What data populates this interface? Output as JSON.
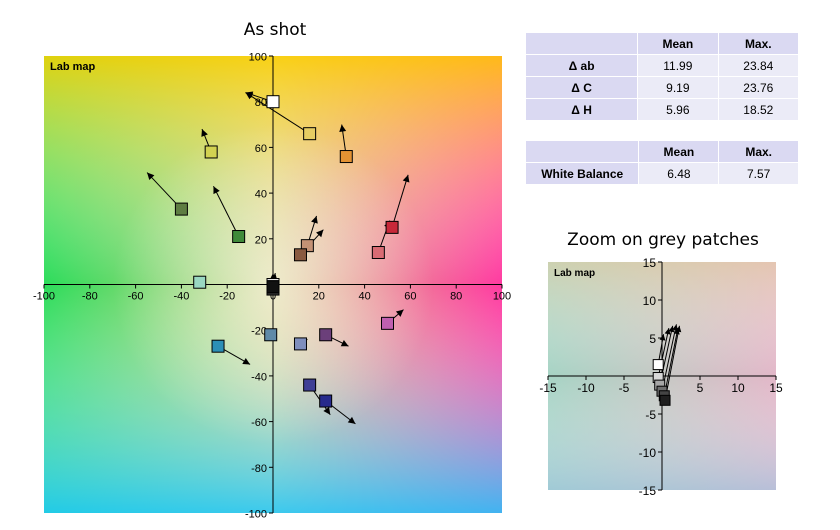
{
  "titles": {
    "main": "As shot",
    "zoom": "Zoom on grey patches"
  },
  "tables": {
    "delta": {
      "headers": [
        "",
        "Mean",
        "Max."
      ],
      "rows": [
        {
          "label": "Δ ab",
          "mean": "11.99",
          "max": "23.84"
        },
        {
          "label": "Δ C",
          "mean": "9.19",
          "max": "23.76"
        },
        {
          "label": "Δ H",
          "mean": "5.96",
          "max": "18.52"
        }
      ]
    },
    "white_balance": {
      "headers": [
        "",
        "Mean",
        "Max."
      ],
      "rows": [
        {
          "label": "White Balance",
          "mean": "6.48",
          "max": "7.57"
        }
      ]
    }
  },
  "chart_data": [
    {
      "type": "scatter",
      "plot_label": "Lab map",
      "title": "As shot",
      "xlim": [
        -100,
        100
      ],
      "ylim": [
        -100,
        100
      ],
      "x_ticks": [
        -100,
        -80,
        -60,
        -40,
        -20,
        0,
        20,
        40,
        60,
        80,
        100
      ],
      "y_ticks": [
        -100,
        -80,
        -60,
        -40,
        -20,
        0,
        20,
        40,
        60,
        80,
        100
      ],
      "grid": false,
      "axes_through_origin": true,
      "marker": "square",
      "patches": [
        {
          "a": 0,
          "b": 80,
          "ta": -12,
          "tb": 84,
          "color": "#ffffff"
        },
        {
          "a": 16,
          "b": 66,
          "ta": -12,
          "tb": 84,
          "color": "#e6cd63"
        },
        {
          "a": -27,
          "b": 58,
          "ta": -31,
          "tb": 68,
          "color": "#d2d251"
        },
        {
          "a": 32,
          "b": 56,
          "ta": 30,
          "tb": 70,
          "color": "#e39233"
        },
        {
          "a": -40,
          "b": 33,
          "ta": -55,
          "tb": 49,
          "color": "#5e7d42"
        },
        {
          "a": -15,
          "b": 21,
          "ta": -26,
          "tb": 43,
          "color": "#3f8a3a"
        },
        {
          "a": 52,
          "b": 25,
          "ta": 59,
          "tb": 48,
          "color": "#c8283a"
        },
        {
          "a": 15,
          "b": 17,
          "ta": 19,
          "tb": 30,
          "color": "#c49275"
        },
        {
          "a": 12,
          "b": 13,
          "ta": 22,
          "tb": 24,
          "color": "#8a5a40"
        },
        {
          "a": 46,
          "b": 14,
          "ta": 51,
          "tb": 28,
          "color": "#d96b74"
        },
        {
          "a": -32,
          "b": 1,
          "ta": -32,
          "tb": 1,
          "color": "#9ad8c2"
        },
        {
          "a": 0,
          "b": 0,
          "ta": 1,
          "tb": 5,
          "color": "#e5e5e5"
        },
        {
          "a": 0,
          "b": -1,
          "ta": 1,
          "tb": 4,
          "color": "#a0a0a0"
        },
        {
          "a": 0,
          "b": -1,
          "ta": 0,
          "tb": 4,
          "color": "#5a5a5a"
        },
        {
          "a": 0,
          "b": -2,
          "ta": 1,
          "tb": 3,
          "color": "#333333"
        },
        {
          "a": 0,
          "b": -1,
          "ta": 0,
          "tb": 5,
          "color": "#111111"
        },
        {
          "a": 50,
          "b": -17,
          "ta": 57,
          "tb": -11,
          "color": "#c060b0"
        },
        {
          "a": -1,
          "b": -22,
          "ta": -1,
          "tb": -22,
          "color": "#5f8aa8"
        },
        {
          "a": 12,
          "b": -26,
          "ta": 15,
          "tb": -24,
          "color": "#7f8fbd"
        },
        {
          "a": 23,
          "b": -22,
          "ta": 33,
          "tb": -27,
          "color": "#6b3f7a"
        },
        {
          "a": -24,
          "b": -27,
          "ta": -10,
          "tb": -35,
          "color": "#2c8fb6"
        },
        {
          "a": 16,
          "b": -44,
          "ta": 25,
          "tb": -57,
          "color": "#3f3f96"
        },
        {
          "a": 23,
          "b": -51,
          "ta": 36,
          "tb": -61,
          "color": "#262a8c"
        }
      ]
    },
    {
      "type": "scatter",
      "plot_label": "Lab map",
      "title": "Zoom on grey patches",
      "xlim": [
        -15,
        15
      ],
      "ylim": [
        -15,
        15
      ],
      "x_ticks": [
        -15,
        -10,
        -5,
        0,
        5,
        10,
        15
      ],
      "y_ticks": [
        -15,
        -10,
        -5,
        0,
        5,
        10,
        15
      ],
      "grid": false,
      "axes_through_origin": true,
      "marker": "square",
      "patches": [
        {
          "a": -0.5,
          "b": 1.5,
          "ta": 0.2,
          "tb": 5.5,
          "color": "#ffffff"
        },
        {
          "a": -0.5,
          "b": -0.2,
          "ta": 0.9,
          "tb": 6.3,
          "color": "#d8d8d8"
        },
        {
          "a": -0.3,
          "b": -1.2,
          "ta": 1.4,
          "tb": 6.6,
          "color": "#a6a6a6"
        },
        {
          "a": 0.0,
          "b": -2.0,
          "ta": 1.9,
          "tb": 6.8,
          "color": "#6f6f6f"
        },
        {
          "a": 0.3,
          "b": -2.6,
          "ta": 2.1,
          "tb": 6.3,
          "color": "#444444"
        },
        {
          "a": 0.4,
          "b": -3.2,
          "ta": 2.3,
          "tb": 6.6,
          "color": "#1e1e1e"
        }
      ]
    }
  ]
}
